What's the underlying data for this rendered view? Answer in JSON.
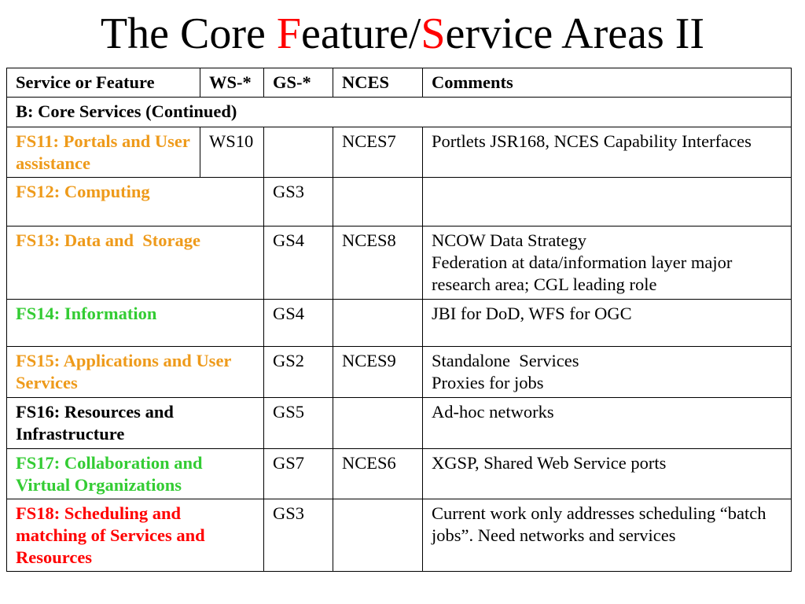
{
  "slide": {
    "title": {
      "segments": [
        {
          "text": "The Core ",
          "color": "#000000"
        },
        {
          "text": "F",
          "color": "#FF0000"
        },
        {
          "text": "eature/",
          "color": "#000000"
        },
        {
          "text": "S",
          "color": "#FF0000"
        },
        {
          "text": "ervice Areas II",
          "color": "#000000"
        }
      ]
    }
  },
  "table": {
    "headers": [
      "Service or Feature",
      "WS-*",
      "GS-*",
      "NCES",
      "Comments"
    ],
    "section_label": "B: Core Services (Continued)",
    "rows": [
      {
        "feature_lines": [
          "FS11: Portals and User",
          "assistance"
        ],
        "feature_color": "#EE9A1A",
        "ws": "WS10",
        "gs": "",
        "nces": "NCES7",
        "comments_lines": [
          "Portlets JSR168, NCES Capability Interfaces"
        ]
      },
      {
        "feature_lines": [
          "FS12: Computing"
        ],
        "feature_color": "#EE9A1A",
        "gs": "GS3",
        "nces": "",
        "comments_lines": []
      },
      {
        "feature_lines": [
          "FS13: Data and  Storage"
        ],
        "feature_color": "#EE9A1A",
        "gs": "GS4",
        "nces": "NCES8",
        "comments_lines": [
          "NCOW Data Strategy",
          "Federation at data/information layer major",
          "research area; CGL leading role"
        ]
      },
      {
        "feature_lines": [
          "FS14: Information"
        ],
        "feature_color": "#33CC33",
        "gs": "GS4",
        "nces": "",
        "comments_lines": [
          "JBI for DoD, WFS for OGC"
        ]
      },
      {
        "feature_lines": [
          "FS15: Applications and User",
          "Services"
        ],
        "feature_color": "#EE9A1A",
        "gs": "GS2",
        "nces": "NCES9",
        "comments_lines": [
          "Standalone  Services",
          "Proxies for jobs"
        ]
      },
      {
        "feature_lines": [
          "FS16: Resources and",
          "Infrastructure"
        ],
        "feature_color": "#000000",
        "gs": "GS5",
        "nces": "",
        "comments_lines": [
          "Ad-hoc networks"
        ]
      },
      {
        "feature_lines": [
          "FS17: Collaboration and",
          "Virtual Organizations"
        ],
        "feature_color": "#33CC33",
        "gs": "GS7",
        "nces": "NCES6",
        "comments_lines": [
          "XGSP, Shared Web Service ports"
        ]
      },
      {
        "feature_lines": [
          "FS18: Scheduling and",
          "matching of Services and",
          "Resources"
        ],
        "feature_color": "#FF0000",
        "gs": "GS3",
        "nces": "",
        "comments_lines": [
          "Current work only addresses scheduling “batch",
          "jobs”. Need networks and services"
        ]
      }
    ]
  }
}
